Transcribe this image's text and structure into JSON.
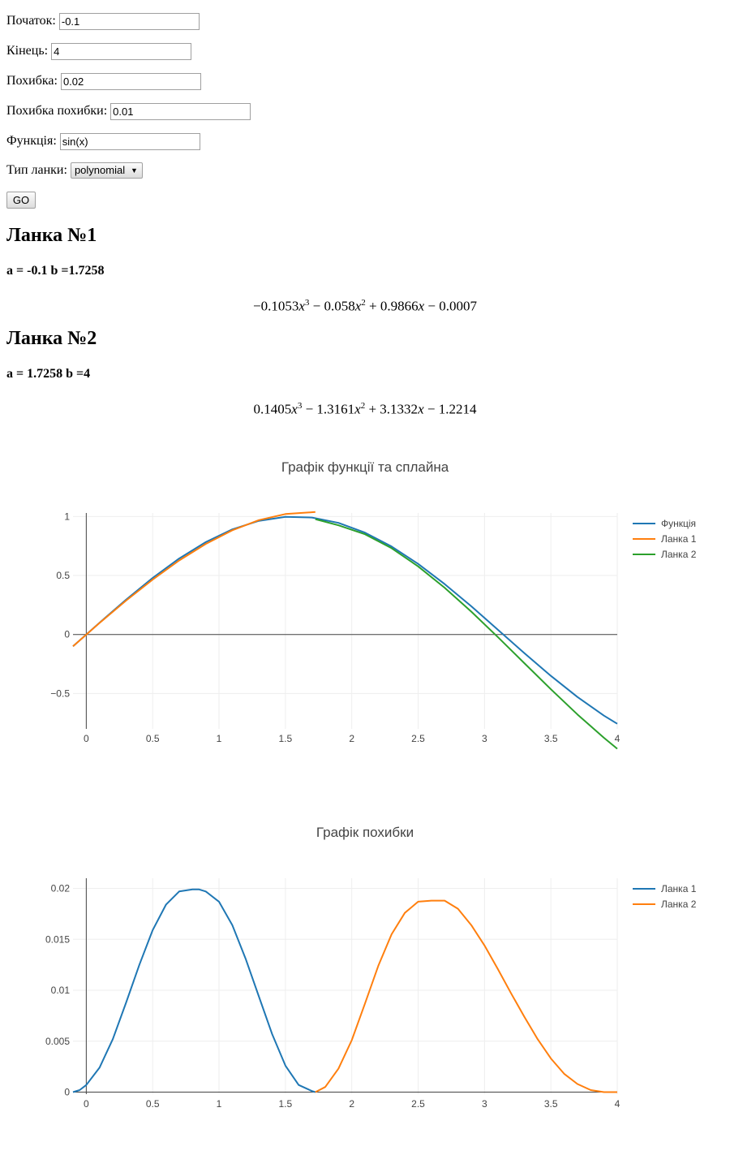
{
  "form": {
    "start": {
      "label": "Початок:",
      "value": "-0.1"
    },
    "end": {
      "label": "Кінець:",
      "value": "4"
    },
    "error": {
      "label": "Похибка:",
      "value": "0.02"
    },
    "error_tolerance": {
      "label": "Похибка похибки:",
      "value": "0.01"
    },
    "function": {
      "label": "Функція:",
      "value": "sin(x)"
    },
    "link_type": {
      "label": "Тип ланки:",
      "selected": "polynomial"
    },
    "go_label": "GO"
  },
  "links": [
    {
      "title": "Ланка №1",
      "interval": "a = -0.1 b =1.7258",
      "formula": {
        "c3": "−0.1053",
        "c2": "− 0.058",
        "c1": "+ 0.9866",
        "c0": "− 0.0007"
      }
    },
    {
      "title": "Ланка №2",
      "interval": "a = 1.7258 b =4",
      "formula": {
        "c3": "0.1405",
        "c2": "− 1.3161",
        "c1": "+ 3.1332",
        "c0": "− 1.2214"
      }
    }
  ],
  "chart_data": [
    {
      "type": "line",
      "title": "Графік функції та сплайна",
      "xlabel": "",
      "ylabel": "",
      "xlim": [
        -0.1,
        4
      ],
      "ylim": [
        -0.8,
        1.03
      ],
      "grid": true,
      "legend_position": "top-right",
      "x_ticks": [
        0,
        0.5,
        1,
        1.5,
        2,
        2.5,
        3,
        3.5,
        4
      ],
      "x_tick_labels": [
        "0",
        "0.5",
        "1",
        "1.5",
        "2",
        "2.5",
        "3",
        "3.5",
        "4"
      ],
      "y_ticks": [
        -0.5,
        0,
        0.5,
        1
      ],
      "y_tick_labels": [
        "−0.5",
        "0",
        "0.5",
        "1"
      ],
      "series": [
        {
          "name": "Функція",
          "color": "#1f77b4",
          "x": [
            -0.1,
            0.1,
            0.3,
            0.5,
            0.7,
            0.9,
            1.1,
            1.3,
            1.5,
            1.7,
            1.9,
            2.1,
            2.3,
            2.5,
            2.7,
            2.9,
            3.1,
            3.3,
            3.5,
            3.7,
            3.9,
            4.0
          ],
          "y": [
            -0.0998,
            0.0998,
            0.2955,
            0.4794,
            0.6442,
            0.7833,
            0.8912,
            0.9636,
            0.9975,
            0.9917,
            0.9463,
            0.8632,
            0.7457,
            0.5985,
            0.4274,
            0.2392,
            0.0416,
            -0.1577,
            -0.3508,
            -0.5298,
            -0.6878,
            -0.7568
          ]
        },
        {
          "name": "Ланка 1",
          "color": "#ff7f0e",
          "x": [
            -0.1,
            0.1,
            0.3,
            0.5,
            0.7,
            0.9,
            1.1,
            1.3,
            1.5,
            1.7258
          ],
          "y": [
            -0.1,
            0.0979,
            0.2875,
            0.4654,
            0.6272,
            0.7679,
            0.8834,
            0.9692,
            1.0211,
            1.0384
          ]
        },
        {
          "name": "Ланка 2",
          "color": "#2ca02c",
          "x": [
            1.7258,
            1.9,
            2.1,
            2.3,
            2.5,
            2.7,
            2.9,
            3.1,
            3.3,
            3.5,
            3.7,
            3.9,
            4.0
          ],
          "y": [
            0.9778,
            0.9255,
            0.8496,
            0.7311,
            0.5775,
            0.3961,
            0.1942,
            -0.0209,
            -0.2427,
            -0.464,
            -0.6775,
            -0.876,
            -0.9684
          ]
        }
      ]
    },
    {
      "type": "line",
      "title": "Графік похибки",
      "xlabel": "",
      "ylabel": "",
      "xlim": [
        -0.1,
        4
      ],
      "ylim": [
        -0.0002,
        0.021
      ],
      "grid": true,
      "legend_position": "top-right",
      "x_ticks": [
        0,
        0.5,
        1,
        1.5,
        2,
        2.5,
        3,
        3.5,
        4
      ],
      "x_tick_labels": [
        "0",
        "0.5",
        "1",
        "1.5",
        "2",
        "2.5",
        "3",
        "3.5",
        "4"
      ],
      "y_ticks": [
        0,
        0.005,
        0.01,
        0.015,
        0.02
      ],
      "y_tick_labels": [
        "0",
        "0.005",
        "0.01",
        "0.015",
        "0.02"
      ],
      "series": [
        {
          "name": "Ланка 1",
          "color": "#1f77b4",
          "x": [
            -0.1,
            -0.05,
            0.0,
            0.1,
            0.2,
            0.3,
            0.4,
            0.5,
            0.6,
            0.7,
            0.8,
            0.85,
            0.9,
            1.0,
            1.1,
            1.2,
            1.3,
            1.4,
            1.5,
            1.6,
            1.7,
            1.7258
          ],
          "y": [
            0.0,
            0.0002,
            0.0007,
            0.0024,
            0.0052,
            0.0088,
            0.0125,
            0.0159,
            0.0184,
            0.0197,
            0.0199,
            0.0199,
            0.0197,
            0.0187,
            0.0164,
            0.0131,
            0.0094,
            0.0057,
            0.0026,
            0.0007,
            0.0001,
            0.0
          ]
        },
        {
          "name": "Ланка 2",
          "color": "#ff7f0e",
          "x": [
            1.7258,
            1.8,
            1.9,
            2.0,
            2.1,
            2.2,
            2.3,
            2.4,
            2.5,
            2.6,
            2.7,
            2.8,
            2.9,
            3.0,
            3.1,
            3.2,
            3.3,
            3.4,
            3.5,
            3.6,
            3.7,
            3.8,
            3.9,
            4.0
          ],
          "y": [
            0.0,
            0.0005,
            0.0023,
            0.0051,
            0.0087,
            0.0124,
            0.0155,
            0.0176,
            0.0187,
            0.0188,
            0.0188,
            0.018,
            0.0164,
            0.0144,
            0.0121,
            0.0097,
            0.0074,
            0.0052,
            0.0033,
            0.0018,
            0.0008,
            0.0002,
            0.0,
            0.0
          ]
        }
      ]
    }
  ]
}
